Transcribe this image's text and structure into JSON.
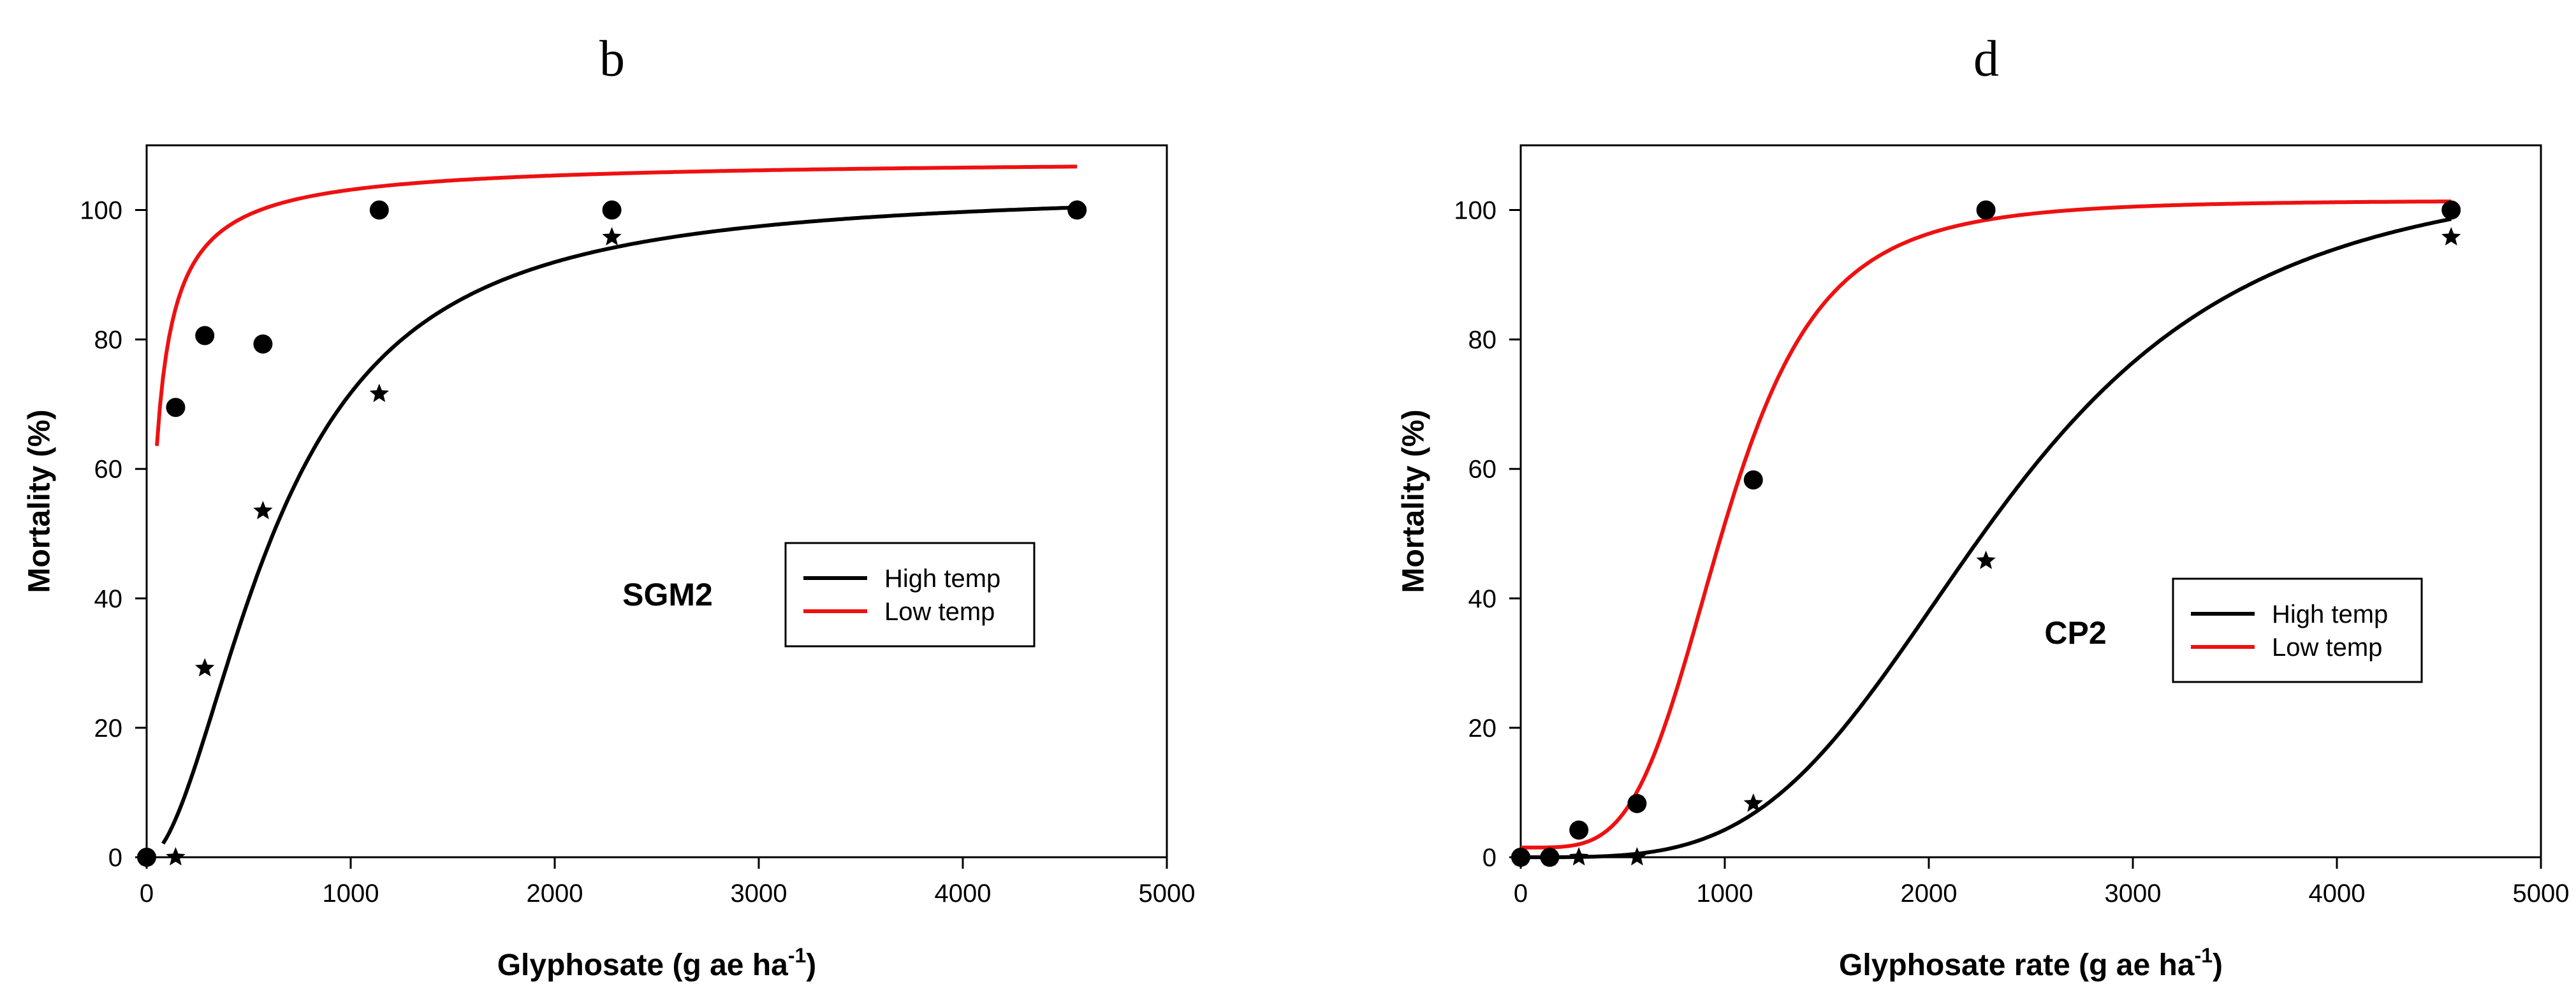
{
  "chart_data": [
    {
      "type": "scatter",
      "panel_label": "b",
      "title": "",
      "annotation": "SGM2",
      "xlabel": "Glyphosate (g ae ha",
      "xlabel_sup": "-1",
      "xlabel_tail": ")",
      "ylabel": "Mortality (%)",
      "xlim": [
        0,
        5000
      ],
      "ylim": [
        0,
        110
      ],
      "xticks": [
        0,
        1000,
        2000,
        3000,
        4000,
        5000
      ],
      "yticks": [
        0,
        20,
        40,
        60,
        80,
        100
      ],
      "grid": false,
      "legend_position": "right-middle",
      "legend": [
        "High temp",
        "Low temp"
      ],
      "series": [
        {
          "name": "High temp",
          "marker": "star",
          "line_color": "#000000",
          "x": [
            0,
            142,
            285,
            570,
            1140,
            2280,
            4560
          ],
          "y": [
            0,
            0,
            29.2,
            53.5,
            71.6,
            95.8,
            100
          ],
          "fit": {
            "model": "sigmoid",
            "min": 0,
            "max": 103,
            "ec50": 640,
            "slope": 1.86,
            "x_start": 80,
            "x_end": 4560
          }
        },
        {
          "name": "Low temp",
          "marker": "circle",
          "line_color": "#ee1111",
          "x": [
            0,
            142,
            285,
            570,
            1140,
            2280,
            4560
          ],
          "y": [
            0,
            69.5,
            80.6,
            79.3,
            100,
            100,
            100
          ],
          "fit": {
            "model": "sigmoid",
            "min": 0,
            "max": 108,
            "ec50": 33.6,
            "slope": 0.9,
            "x_start": 50,
            "x_end": 4560
          }
        }
      ]
    },
    {
      "type": "scatter",
      "panel_label": "d",
      "title": "",
      "annotation": "CP2",
      "xlabel": "Glyphosate rate (g ae ha",
      "xlabel_sup": "-1",
      "xlabel_tail": ")",
      "ylabel": "Mortality (%)",
      "xlim": [
        0,
        5000
      ],
      "ylim": [
        0,
        110
      ],
      "xticks": [
        0,
        1000,
        2000,
        3000,
        4000,
        5000
      ],
      "yticks": [
        0,
        20,
        40,
        60,
        80,
        100
      ],
      "grid": false,
      "legend_position": "right-lower-middle",
      "legend": [
        "High temp",
        "Low temp"
      ],
      "series": [
        {
          "name": "High temp",
          "marker": "star",
          "line_color": "#000000",
          "x": [
            0,
            142,
            285,
            570,
            1140,
            2280,
            4560
          ],
          "y": [
            0,
            0,
            0,
            0,
            8.3,
            45.8,
            95.8
          ],
          "fit": {
            "model": "sigmoid",
            "min": 0,
            "max": 106.8,
            "ec50": 2344,
            "slope": 3.74,
            "x_start": 0,
            "x_end": 4560
          }
        },
        {
          "name": "Low temp",
          "marker": "circle",
          "line_color": "#ee1111",
          "x": [
            0,
            142,
            285,
            570,
            1140,
            2280,
            4560
          ],
          "y": [
            0,
            0,
            4.2,
            8.3,
            58.3,
            100,
            100
          ],
          "fit": {
            "model": "sigmoid",
            "min": 1.5,
            "max": 101.5,
            "ec50": 1000,
            "slope": 4.2,
            "x_start": 0,
            "x_end": 4560
          }
        }
      ]
    }
  ]
}
